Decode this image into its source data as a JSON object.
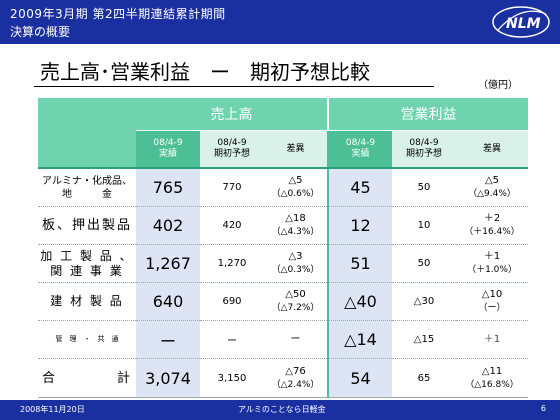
{
  "header": {
    "line1": "2009年3月期 第2四半期連結累計期間",
    "line2": "決算の概要",
    "logo_text": "NLM"
  },
  "title": "売上高･営業利益　ー　期初予想比較",
  "unit": "（億円）",
  "table": {
    "group_headers": [
      "売上高",
      "営業利益"
    ],
    "sub_headers": [
      {
        "line1": "08/4-9",
        "line2": "実績"
      },
      {
        "line1": "08/4-9",
        "line2": "期初予想"
      },
      {
        "line1": "差異",
        "line2": ""
      },
      {
        "line1": "08/4-9",
        "line2": "実績"
      },
      {
        "line1": "08/4-9",
        "line2": "期初予想"
      },
      {
        "line1": "差異",
        "line2": ""
      }
    ],
    "rows": [
      {
        "name1": "アルミナ・化成品、",
        "name2": "地　　　金",
        "sales_actual": "765",
        "sales_forecast": "770",
        "sales_diff": "△5",
        "sales_diff_pct": "（△0.6%）",
        "op_actual": "45",
        "op_forecast": "50",
        "op_diff": "△5",
        "op_diff_pct": "（△9.4%）"
      },
      {
        "name1": "板、押出製品",
        "name2": "",
        "sales_actual": "402",
        "sales_forecast": "420",
        "sales_diff": "△18",
        "sales_diff_pct": "（△4.3%）",
        "op_actual": "12",
        "op_forecast": "10",
        "op_diff": "＋2",
        "op_diff_pct": "（＋16.4%）"
      },
      {
        "name1": "加 工 製 品 、",
        "name2": "関 連 事 業",
        "sales_actual": "1,267",
        "sales_forecast": "1,270",
        "sales_diff": "△3",
        "sales_diff_pct": "（△0.3%）",
        "op_actual": "51",
        "op_forecast": "50",
        "op_diff": "＋1",
        "op_diff_pct": "（＋1.0%）"
      },
      {
        "name1": "建 材 製 品",
        "name2": "",
        "sales_actual": "640",
        "sales_forecast": "690",
        "sales_diff": "△50",
        "sales_diff_pct": "（△7.2%）",
        "op_actual": "△40",
        "op_forecast": "△30",
        "op_diff": "△10",
        "op_diff_pct": "（ー）"
      },
      {
        "name1": "管　理　・　共　通",
        "name2": "",
        "sales_actual": "ー",
        "sales_forecast": "ー",
        "sales_diff": "ー",
        "sales_diff_pct": "",
        "op_actual": "△14",
        "op_forecast": "△15",
        "op_diff": "＋1",
        "op_diff_pct": ""
      },
      {
        "name1": "合　　　　計",
        "name2": "",
        "sales_actual": "3,074",
        "sales_forecast": "3,150",
        "sales_diff": "△76",
        "sales_diff_pct": "（△2.4%）",
        "op_actual": "54",
        "op_forecast": "65",
        "op_diff": "△11",
        "op_diff_pct": "（△16.8%）"
      }
    ]
  },
  "footer": {
    "date": "2008年11月20日",
    "center": "アルミのことなら日軽金",
    "page": "6"
  },
  "colors": {
    "header_blue": "#1a2fa0",
    "green_head": "#6fd3b0",
    "green_dark": "#4cbf96",
    "light_blue": "#dde4f3"
  }
}
